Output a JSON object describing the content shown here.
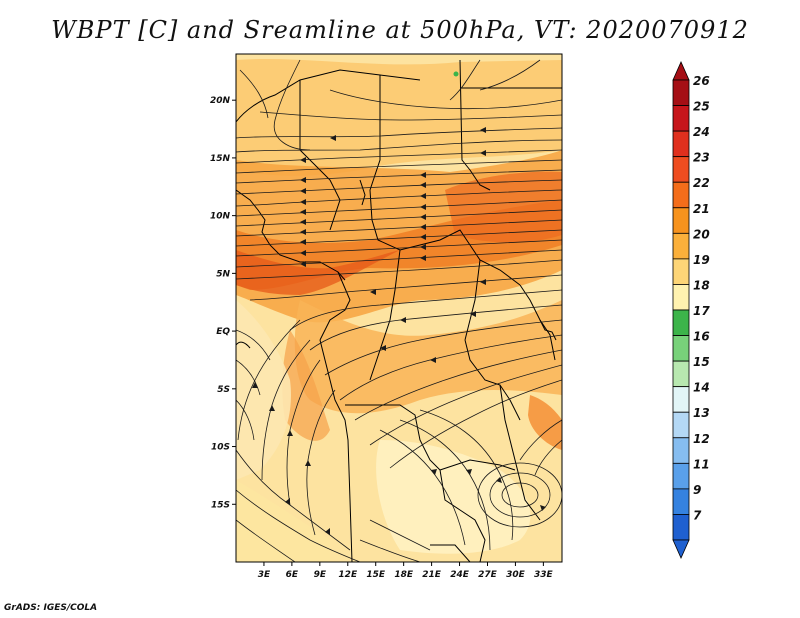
{
  "title": "WBPT [C] and Sreamline at 500hPa, VT: 2020070912",
  "credit": "GrADS: IGES/COLA",
  "map": {
    "lon_range": [
      0,
      35
    ],
    "lat_range": [
      -20,
      24
    ],
    "lat_ticks": [
      {
        "value": 20,
        "label": "20N"
      },
      {
        "value": 15,
        "label": "15N"
      },
      {
        "value": 10,
        "label": "10N"
      },
      {
        "value": 5,
        "label": "5N"
      },
      {
        "value": 0,
        "label": "EQ"
      },
      {
        "value": -5,
        "label": "5S"
      },
      {
        "value": -10,
        "label": "10S"
      },
      {
        "value": -15,
        "label": "15S"
      }
    ],
    "lon_ticks": [
      {
        "value": 3,
        "label": "3E"
      },
      {
        "value": 6,
        "label": "6E"
      },
      {
        "value": 9,
        "label": "9E"
      },
      {
        "value": 12,
        "label": "12E"
      },
      {
        "value": 15,
        "label": "15E"
      },
      {
        "value": 18,
        "label": "18E"
      },
      {
        "value": 21,
        "label": "21E"
      },
      {
        "value": 24,
        "label": "24E"
      },
      {
        "value": 27,
        "label": "27E"
      },
      {
        "value": 30,
        "label": "30E"
      },
      {
        "value": 33,
        "label": "33E"
      }
    ]
  },
  "colorbar": {
    "levels": [
      {
        "label": "26",
        "color": "#a50f15"
      },
      {
        "label": "25",
        "color": "#c6161b"
      },
      {
        "label": "24",
        "color": "#e0301e"
      },
      {
        "label": "23",
        "color": "#ee4d20"
      },
      {
        "label": "22",
        "color": "#f46d1a"
      },
      {
        "label": "21",
        "color": "#f7931e"
      },
      {
        "label": "20",
        "color": "#fbb03b"
      },
      {
        "label": "19",
        "color": "#fdd577"
      },
      {
        "label": "18",
        "color": "#fff2b0"
      },
      {
        "label": "17",
        "color": "#3cb44a"
      },
      {
        "label": "16",
        "color": "#78d27a"
      },
      {
        "label": "15",
        "color": "#b8e8b0"
      },
      {
        "label": "14",
        "color": "#e2f5f7"
      },
      {
        "label": "13",
        "color": "#b4d8f5"
      },
      {
        "label": "12",
        "color": "#86bdf0"
      },
      {
        "label": "11",
        "color": "#5aa0ea"
      },
      {
        "label": "9",
        "color": "#3582e0"
      },
      {
        "label": "7",
        "color": "#1f60d0"
      }
    ]
  }
}
